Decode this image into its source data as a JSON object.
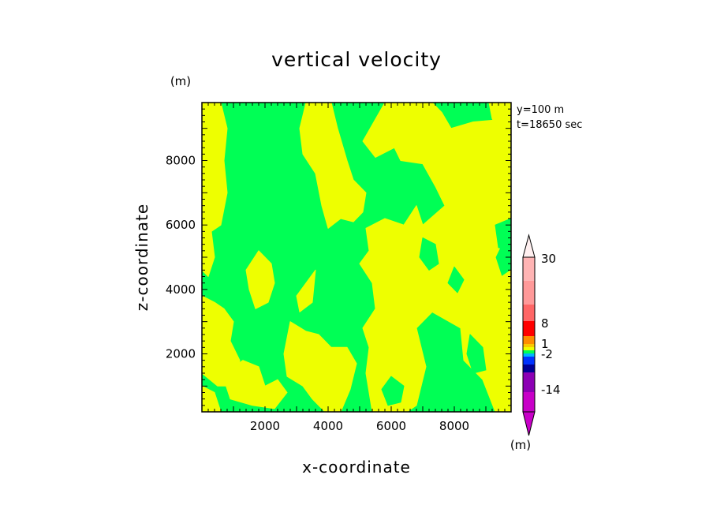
{
  "chart_data": {
    "type": "heatmap",
    "title": "vertical velocity",
    "xlabel": "x-coordinate",
    "ylabel": "z-coordinate",
    "x_unit": "(m)",
    "y_unit": "(m)",
    "annotation_lines": [
      "y=100 m",
      "t=18650 sec"
    ],
    "xlim": [
      0,
      9800
    ],
    "ylim": [
      200,
      9800
    ],
    "xticks": [
      2000,
      4000,
      6000,
      8000
    ],
    "yticks": [
      2000,
      4000,
      6000,
      8000
    ],
    "xtick_labels": [
      "2000",
      "4000",
      "6000",
      "8000"
    ],
    "ytick_labels": [
      "2000",
      "4000",
      "6000",
      "8000"
    ],
    "fill_colors": {
      "upward": "#eeff00",
      "downward": "#00ff55"
    },
    "colorbar": {
      "unit": "(m)",
      "tick_labels": [
        "30",
        "8",
        "1",
        "-2",
        "-14"
      ],
      "bands": [
        "#c800c8",
        "#8c00b4",
        "#000096",
        "#0032ff",
        "#00b4ff",
        "#00ff55",
        "#eeff00",
        "#fac800",
        "#ff8c00",
        "#ff0000",
        "#ff6666",
        "#ffb4b4",
        "#fff0f0"
      ]
    },
    "regions": [
      {
        "value": "upward",
        "polygon": [
          [
            0,
            9800
          ],
          [
            600,
            9800
          ],
          [
            800,
            9000
          ],
          [
            700,
            8000
          ],
          [
            800,
            7000
          ],
          [
            600,
            6000
          ],
          [
            300,
            5800
          ],
          [
            400,
            5000
          ],
          [
            200,
            4400
          ],
          [
            0,
            4600
          ]
        ]
      },
      {
        "value": "upward",
        "polygon": [
          [
            3300,
            9800
          ],
          [
            4100,
            9800
          ],
          [
            4300,
            9000
          ],
          [
            4600,
            8000
          ],
          [
            4800,
            7400
          ],
          [
            5200,
            7000
          ],
          [
            5100,
            6400
          ],
          [
            4800,
            6100
          ],
          [
            4400,
            6200
          ],
          [
            4000,
            5900
          ],
          [
            3800,
            6600
          ],
          [
            3600,
            7600
          ],
          [
            3200,
            8200
          ],
          [
            3100,
            9000
          ]
        ]
      },
      {
        "value": "upward",
        "polygon": [
          [
            5800,
            9800
          ],
          [
            7300,
            9800
          ],
          [
            7600,
            9500
          ],
          [
            7900,
            9000
          ],
          [
            8600,
            9200
          ],
          [
            9800,
            9300
          ],
          [
            9800,
            6000
          ],
          [
            9600,
            5600
          ],
          [
            9300,
            5000
          ],
          [
            9500,
            4400
          ],
          [
            9800,
            4600
          ],
          [
            9800,
            200
          ],
          [
            9300,
            200
          ],
          [
            8900,
            1200
          ],
          [
            8300,
            1800
          ],
          [
            8200,
            2800
          ],
          [
            7300,
            3300
          ],
          [
            6800,
            2800
          ],
          [
            7100,
            1600
          ],
          [
            6800,
            400
          ],
          [
            6500,
            200
          ],
          [
            5400,
            200
          ],
          [
            5200,
            1400
          ],
          [
            5300,
            2200
          ],
          [
            5100,
            2800
          ],
          [
            5500,
            3400
          ],
          [
            5400,
            4200
          ],
          [
            5000,
            4800
          ],
          [
            5300,
            5200
          ],
          [
            5200,
            5900
          ],
          [
            5800,
            6200
          ],
          [
            6400,
            6000
          ],
          [
            6800,
            6600
          ],
          [
            7000,
            6000
          ],
          [
            7700,
            6600
          ],
          [
            7400,
            7200
          ],
          [
            7000,
            7900
          ],
          [
            6300,
            8000
          ],
          [
            6100,
            8400
          ],
          [
            5500,
            8100
          ],
          [
            5100,
            8600
          ]
        ]
      },
      {
        "value": "upward",
        "polygon": [
          [
            0,
            3800
          ],
          [
            400,
            3600
          ],
          [
            700,
            3400
          ],
          [
            1000,
            3000
          ],
          [
            900,
            2400
          ],
          [
            1200,
            1800
          ],
          [
            1000,
            1000
          ],
          [
            500,
            1000
          ],
          [
            0,
            1400
          ]
        ]
      },
      {
        "value": "upward",
        "polygon": [
          [
            0,
            1000
          ],
          [
            400,
            800
          ],
          [
            600,
            200
          ],
          [
            0,
            200
          ]
        ]
      },
      {
        "value": "upward",
        "polygon": [
          [
            1300,
            1800
          ],
          [
            1800,
            1600
          ],
          [
            2000,
            1000
          ],
          [
            2400,
            1200
          ],
          [
            2700,
            800
          ],
          [
            2300,
            300
          ],
          [
            1600,
            400
          ],
          [
            900,
            600
          ],
          [
            700,
            1200
          ],
          [
            1000,
            1600
          ]
        ]
      },
      {
        "value": "upward",
        "polygon": [
          [
            2800,
            3000
          ],
          [
            3300,
            2700
          ],
          [
            3700,
            2600
          ],
          [
            4100,
            2200
          ],
          [
            4600,
            2200
          ],
          [
            4900,
            1700
          ],
          [
            4700,
            900
          ],
          [
            4400,
            200
          ],
          [
            3900,
            200
          ],
          [
            3500,
            600
          ],
          [
            3200,
            1000
          ],
          [
            2700,
            1300
          ],
          [
            2600,
            2000
          ]
        ]
      },
      {
        "value": "upward",
        "polygon": [
          [
            1800,
            5200
          ],
          [
            2200,
            4800
          ],
          [
            2300,
            4200
          ],
          [
            2100,
            3600
          ],
          [
            1700,
            3400
          ],
          [
            1500,
            4000
          ],
          [
            1400,
            4600
          ]
        ]
      },
      {
        "value": "upward",
        "polygon": [
          [
            3300,
            4200
          ],
          [
            3600,
            4600
          ],
          [
            3500,
            3600
          ],
          [
            3100,
            3300
          ],
          [
            3000,
            3800
          ]
        ]
      },
      {
        "value": "upward",
        "polygon": [
          [
            9100,
            9800
          ],
          [
            9800,
            9800
          ],
          [
            9800,
            8800
          ],
          [
            9500,
            8800
          ],
          [
            9200,
            9300
          ]
        ]
      },
      {
        "value": "downward",
        "polygon": [
          [
            7000,
            5600
          ],
          [
            7400,
            5400
          ],
          [
            7500,
            4800
          ],
          [
            7200,
            4600
          ],
          [
            6900,
            5000
          ]
        ]
      },
      {
        "value": "downward",
        "polygon": [
          [
            8000,
            4700
          ],
          [
            8300,
            4300
          ],
          [
            8100,
            3900
          ],
          [
            7800,
            4200
          ]
        ]
      },
      {
        "value": "downward",
        "polygon": [
          [
            8500,
            2600
          ],
          [
            8900,
            2200
          ],
          [
            9000,
            1500
          ],
          [
            8600,
            1400
          ],
          [
            8400,
            2000
          ]
        ]
      },
      {
        "value": "downward",
        "polygon": [
          [
            7200,
            1600
          ],
          [
            7600,
            1400
          ],
          [
            7600,
            800
          ],
          [
            7300,
            700
          ],
          [
            7100,
            1100
          ]
        ]
      },
      {
        "value": "downward",
        "polygon": [
          [
            6000,
            1300
          ],
          [
            6400,
            1000
          ],
          [
            6300,
            500
          ],
          [
            5900,
            400
          ],
          [
            5700,
            900
          ]
        ]
      },
      {
        "value": "downward",
        "polygon": [
          [
            9300,
            6000
          ],
          [
            9800,
            6200
          ],
          [
            9800,
            5200
          ],
          [
            9400,
            5300
          ]
        ]
      }
    ]
  }
}
